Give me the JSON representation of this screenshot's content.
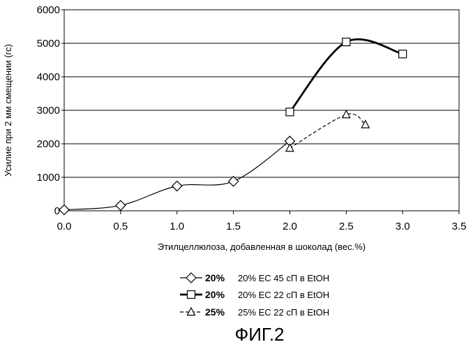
{
  "chart_data": {
    "type": "line",
    "xlabel": "Этилцеллюлоза, добавленная в шоколад (вес.%)",
    "ylabel": "Усилие при 2 мм смещении (гс)",
    "xlim": [
      0,
      3.5
    ],
    "ylim": [
      0,
      6000
    ],
    "x_ticks": [
      "0.0",
      "0.5",
      "1.0",
      "1.5",
      "2.0",
      "2.5",
      "3.0",
      "3.5"
    ],
    "y_ticks": [
      "0",
      "1000",
      "2000",
      "3000",
      "4000",
      "5000",
      "6000"
    ],
    "grid": "horizontal",
    "legend_position": "bottom",
    "series": [
      {
        "name": "20% EC 45 сП в EtOH",
        "legend_tag": "20%",
        "marker": "diamond",
        "line_style": "solid-thin",
        "x": [
          0.0,
          0.5,
          1.0,
          1.5,
          2.0
        ],
        "values": [
          30,
          160,
          740,
          880,
          2080
        ]
      },
      {
        "name": "20% EC 22 сП в EtOH",
        "legend_tag": "20%",
        "marker": "square",
        "line_style": "solid-thick",
        "x": [
          2.0,
          2.5,
          3.0
        ],
        "values": [
          2950,
          5040,
          4680
        ]
      },
      {
        "name": "25% EC 22 сП в EtOH",
        "legend_tag": "25%",
        "marker": "triangle",
        "line_style": "dashed",
        "x": [
          2.0,
          2.5,
          2.67
        ],
        "values": [
          1870,
          2870,
          2570
        ]
      }
    ]
  },
  "figure_caption": "ФИГ.2"
}
